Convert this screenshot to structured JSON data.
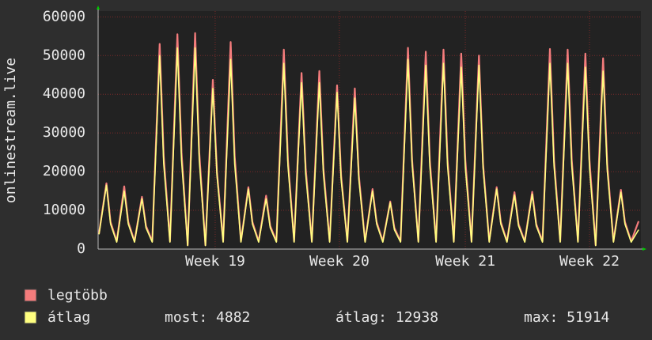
{
  "chart_data": {
    "type": "line",
    "y_label": "onlinestream.live",
    "x": [
      0.05,
      0.47,
      0.7,
      1.05,
      1.47,
      1.7,
      2.05,
      2.47,
      2.7,
      3.05,
      3.47,
      3.7,
      4.05,
      4.47,
      4.7,
      5.05,
      5.47,
      5.7,
      6.05,
      6.47,
      6.7,
      7.05,
      7.47,
      7.7,
      8.05,
      8.47,
      8.7,
      9.05,
      9.47,
      9.7,
      10.05,
      10.47,
      10.7,
      11.05,
      11.47,
      11.7,
      12.05,
      12.47,
      12.7,
      13.05,
      13.47,
      13.7,
      14.05,
      14.47,
      14.7,
      15.05,
      15.47,
      15.7,
      16.05,
      16.47,
      16.7,
      17.05,
      17.47,
      17.7,
      18.05,
      18.47,
      18.7,
      19.05,
      19.47,
      19.7,
      20.05,
      20.47,
      20.7,
      21.05,
      21.47,
      21.7,
      22.05,
      22.47,
      22.7,
      23.05,
      23.47,
      23.7,
      24.05,
      24.47,
      24.7,
      25.05,
      25.47,
      25.7,
      26.05,
      26.47,
      26.7,
      27.05,
      27.47,
      27.7,
      28.05,
      28.47,
      28.7,
      29.05,
      29.47,
      29.7,
      30.05,
      30.47
    ],
    "series": [
      {
        "name": "legtöbb",
        "color": "#f47c7c",
        "values": [
          4000,
          17000,
          7000,
          2000,
          16200,
          7000,
          2000,
          13500,
          6000,
          2000,
          53000,
          24000,
          2000,
          55500,
          25000,
          1000,
          55800,
          25000,
          1000,
          43700,
          20000,
          2000,
          53500,
          24000,
          2000,
          16000,
          7000,
          2000,
          13800,
          6000,
          2000,
          51500,
          23000,
          2000,
          45500,
          21000,
          2000,
          46000,
          21000,
          2000,
          42300,
          19000,
          2000,
          41500,
          19000,
          2000,
          15500,
          7000,
          2000,
          12300,
          5500,
          2000,
          52000,
          23000,
          2000,
          51000,
          23000,
          2000,
          51500,
          23000,
          2000,
          50500,
          23000,
          2000,
          50000,
          22000,
          2000,
          16000,
          7000,
          2000,
          14700,
          6500,
          2000,
          14800,
          6500,
          2000,
          51700,
          23000,
          2000,
          51500,
          23000,
          2000,
          50500,
          23000,
          1000,
          49300,
          22000,
          2000,
          15300,
          7000,
          2000,
          7200
        ]
      },
      {
        "name": "átlag",
        "color": "#ffff80",
        "values": [
          3800,
          16500,
          6500,
          1800,
          15000,
          6500,
          1800,
          13000,
          5500,
          1800,
          50000,
          22000,
          1800,
          52000,
          23000,
          900,
          52000,
          23000,
          900,
          41500,
          19000,
          1800,
          49000,
          22000,
          1800,
          15500,
          6500,
          1800,
          13000,
          5500,
          1800,
          48000,
          21500,
          1800,
          43000,
          19500,
          1800,
          43000,
          19500,
          1800,
          40500,
          18000,
          1800,
          39000,
          18000,
          1800,
          15000,
          6500,
          1800,
          12000,
          5000,
          1800,
          49000,
          22000,
          1800,
          47500,
          21500,
          1800,
          48000,
          21500,
          1800,
          47000,
          21000,
          1800,
          47500,
          21000,
          1800,
          15500,
          6500,
          1800,
          14000,
          6000,
          1800,
          14200,
          6000,
          1800,
          48000,
          21500,
          1800,
          48000,
          21500,
          1800,
          47000,
          21000,
          900,
          46000,
          20500,
          1800,
          14700,
          6500,
          1800,
          5000
        ]
      }
    ],
    "xlim": [
      0,
      30.6
    ],
    "xticks": [
      {
        "value": 6.6,
        "label": "Week 19"
      },
      {
        "value": 13.6,
        "label": "Week 20"
      },
      {
        "value": 20.7,
        "label": "Week 21"
      },
      {
        "value": 27.7,
        "label": "Week 22"
      }
    ],
    "ylim": [
      0,
      61500
    ],
    "yticks": [
      0,
      10000,
      20000,
      30000,
      40000,
      50000,
      60000
    ],
    "grid": true,
    "stats": [
      "most: 4882",
      "átlag: 12938",
      "max: 51914"
    ]
  }
}
